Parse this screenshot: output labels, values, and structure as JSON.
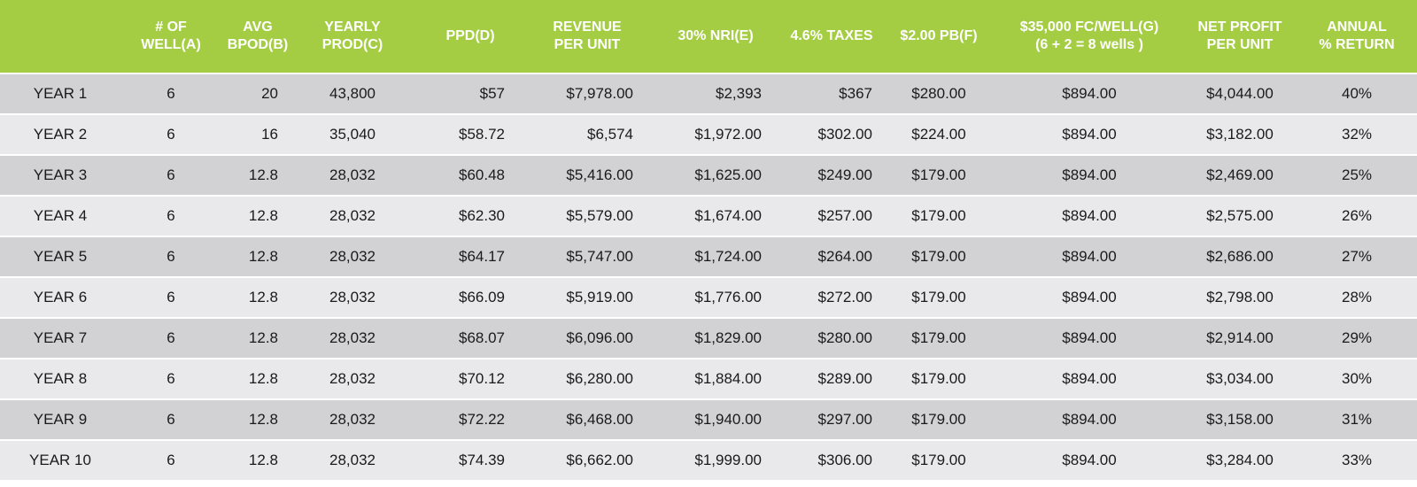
{
  "colors": {
    "header_bg": "#a4cd43",
    "header_text": "#ffffff",
    "row_dark": "#d2d2d4",
    "row_light": "#e9e9ec"
  },
  "header": {
    "wells": [
      "# OF",
      "WELL(A)"
    ],
    "bpod": [
      "AVG",
      "BPOD(B)"
    ],
    "yearly": [
      "YEARLY",
      "PROD(C)"
    ],
    "ppd": [
      "PPD(D)"
    ],
    "revenue": [
      "REVENUE",
      "PER UNIT"
    ],
    "nri": [
      "30%  NRI(E)"
    ],
    "taxes": [
      "4.6% TAXES"
    ],
    "pb": [
      "$2.00 PB(F)"
    ],
    "fc": [
      "$35,000 FC/WELL(G)",
      "(6 + 2 = 8 wells )"
    ],
    "net": [
      "NET PROFIT",
      "PER UNIT"
    ],
    "annual": [
      "ANNUAL",
      "% RETURN"
    ]
  },
  "rows": [
    {
      "year": "YEAR 1",
      "wells": "6",
      "bpod": "20",
      "yearly": "43,800",
      "ppd": "$57",
      "revenue": "$7,978.00",
      "nri": "$2,393",
      "taxes": "$367",
      "pb": "$280.00",
      "fc": "$894.00",
      "net": "$4,044.00",
      "annual": "40%"
    },
    {
      "year": "YEAR 2",
      "wells": "6",
      "bpod": "16",
      "yearly": "35,040",
      "ppd": "$58.72",
      "revenue": "$6,574",
      "nri": "$1,972.00",
      "taxes": "$302.00",
      "pb": "$224.00",
      "fc": "$894.00",
      "net": "$3,182.00",
      "annual": "32%"
    },
    {
      "year": "YEAR 3",
      "wells": "6",
      "bpod": "12.8",
      "yearly": "28,032",
      "ppd": "$60.48",
      "revenue": "$5,416.00",
      "nri": "$1,625.00",
      "taxes": "$249.00",
      "pb": "$179.00",
      "fc": "$894.00",
      "net": "$2,469.00",
      "annual": "25%"
    },
    {
      "year": "YEAR 4",
      "wells": "6",
      "bpod": "12.8",
      "yearly": "28,032",
      "ppd": "$62.30",
      "revenue": "$5,579.00",
      "nri": "$1,674.00",
      "taxes": "$257.00",
      "pb": "$179.00",
      "fc": "$894.00",
      "net": "$2,575.00",
      "annual": "26%"
    },
    {
      "year": "YEAR 5",
      "wells": "6",
      "bpod": "12.8",
      "yearly": "28,032",
      "ppd": "$64.17",
      "revenue": "$5,747.00",
      "nri": "$1,724.00",
      "taxes": "$264.00",
      "pb": "$179.00",
      "fc": "$894.00",
      "net": "$2,686.00",
      "annual": "27%"
    },
    {
      "year": "YEAR 6",
      "wells": "6",
      "bpod": "12.8",
      "yearly": "28,032",
      "ppd": "$66.09",
      "revenue": "$5,919.00",
      "nri": "$1,776.00",
      "taxes": "$272.00",
      "pb": "$179.00",
      "fc": "$894.00",
      "net": "$2,798.00",
      "annual": "28%"
    },
    {
      "year": "YEAR 7",
      "wells": "6",
      "bpod": "12.8",
      "yearly": "28,032",
      "ppd": "$68.07",
      "revenue": "$6,096.00",
      "nri": "$1,829.00",
      "taxes": "$280.00",
      "pb": "$179.00",
      "fc": "$894.00",
      "net": "$2,914.00",
      "annual": "29%"
    },
    {
      "year": "YEAR 8",
      "wells": "6",
      "bpod": "12.8",
      "yearly": "28,032",
      "ppd": "$70.12",
      "revenue": "$6,280.00",
      "nri": "$1,884.00",
      "taxes": "$289.00",
      "pb": "$179.00",
      "fc": "$894.00",
      "net": "$3,034.00",
      "annual": "30%"
    },
    {
      "year": "YEAR 9",
      "wells": "6",
      "bpod": "12.8",
      "yearly": "28,032",
      "ppd": "$72.22",
      "revenue": "$6,468.00",
      "nri": "$1,940.00",
      "taxes": "$297.00",
      "pb": "$179.00",
      "fc": "$894.00",
      "net": "$3,158.00",
      "annual": "31%"
    },
    {
      "year": "YEAR 10",
      "wells": "6",
      "bpod": "12.8",
      "yearly": "28,032",
      "ppd": "$74.39",
      "revenue": "$6,662.00",
      "nri": "$1,999.00",
      "taxes": "$306.00",
      "pb": "$179.00",
      "fc": "$894.00",
      "net": "$3,284.00",
      "annual": "33%"
    }
  ]
}
